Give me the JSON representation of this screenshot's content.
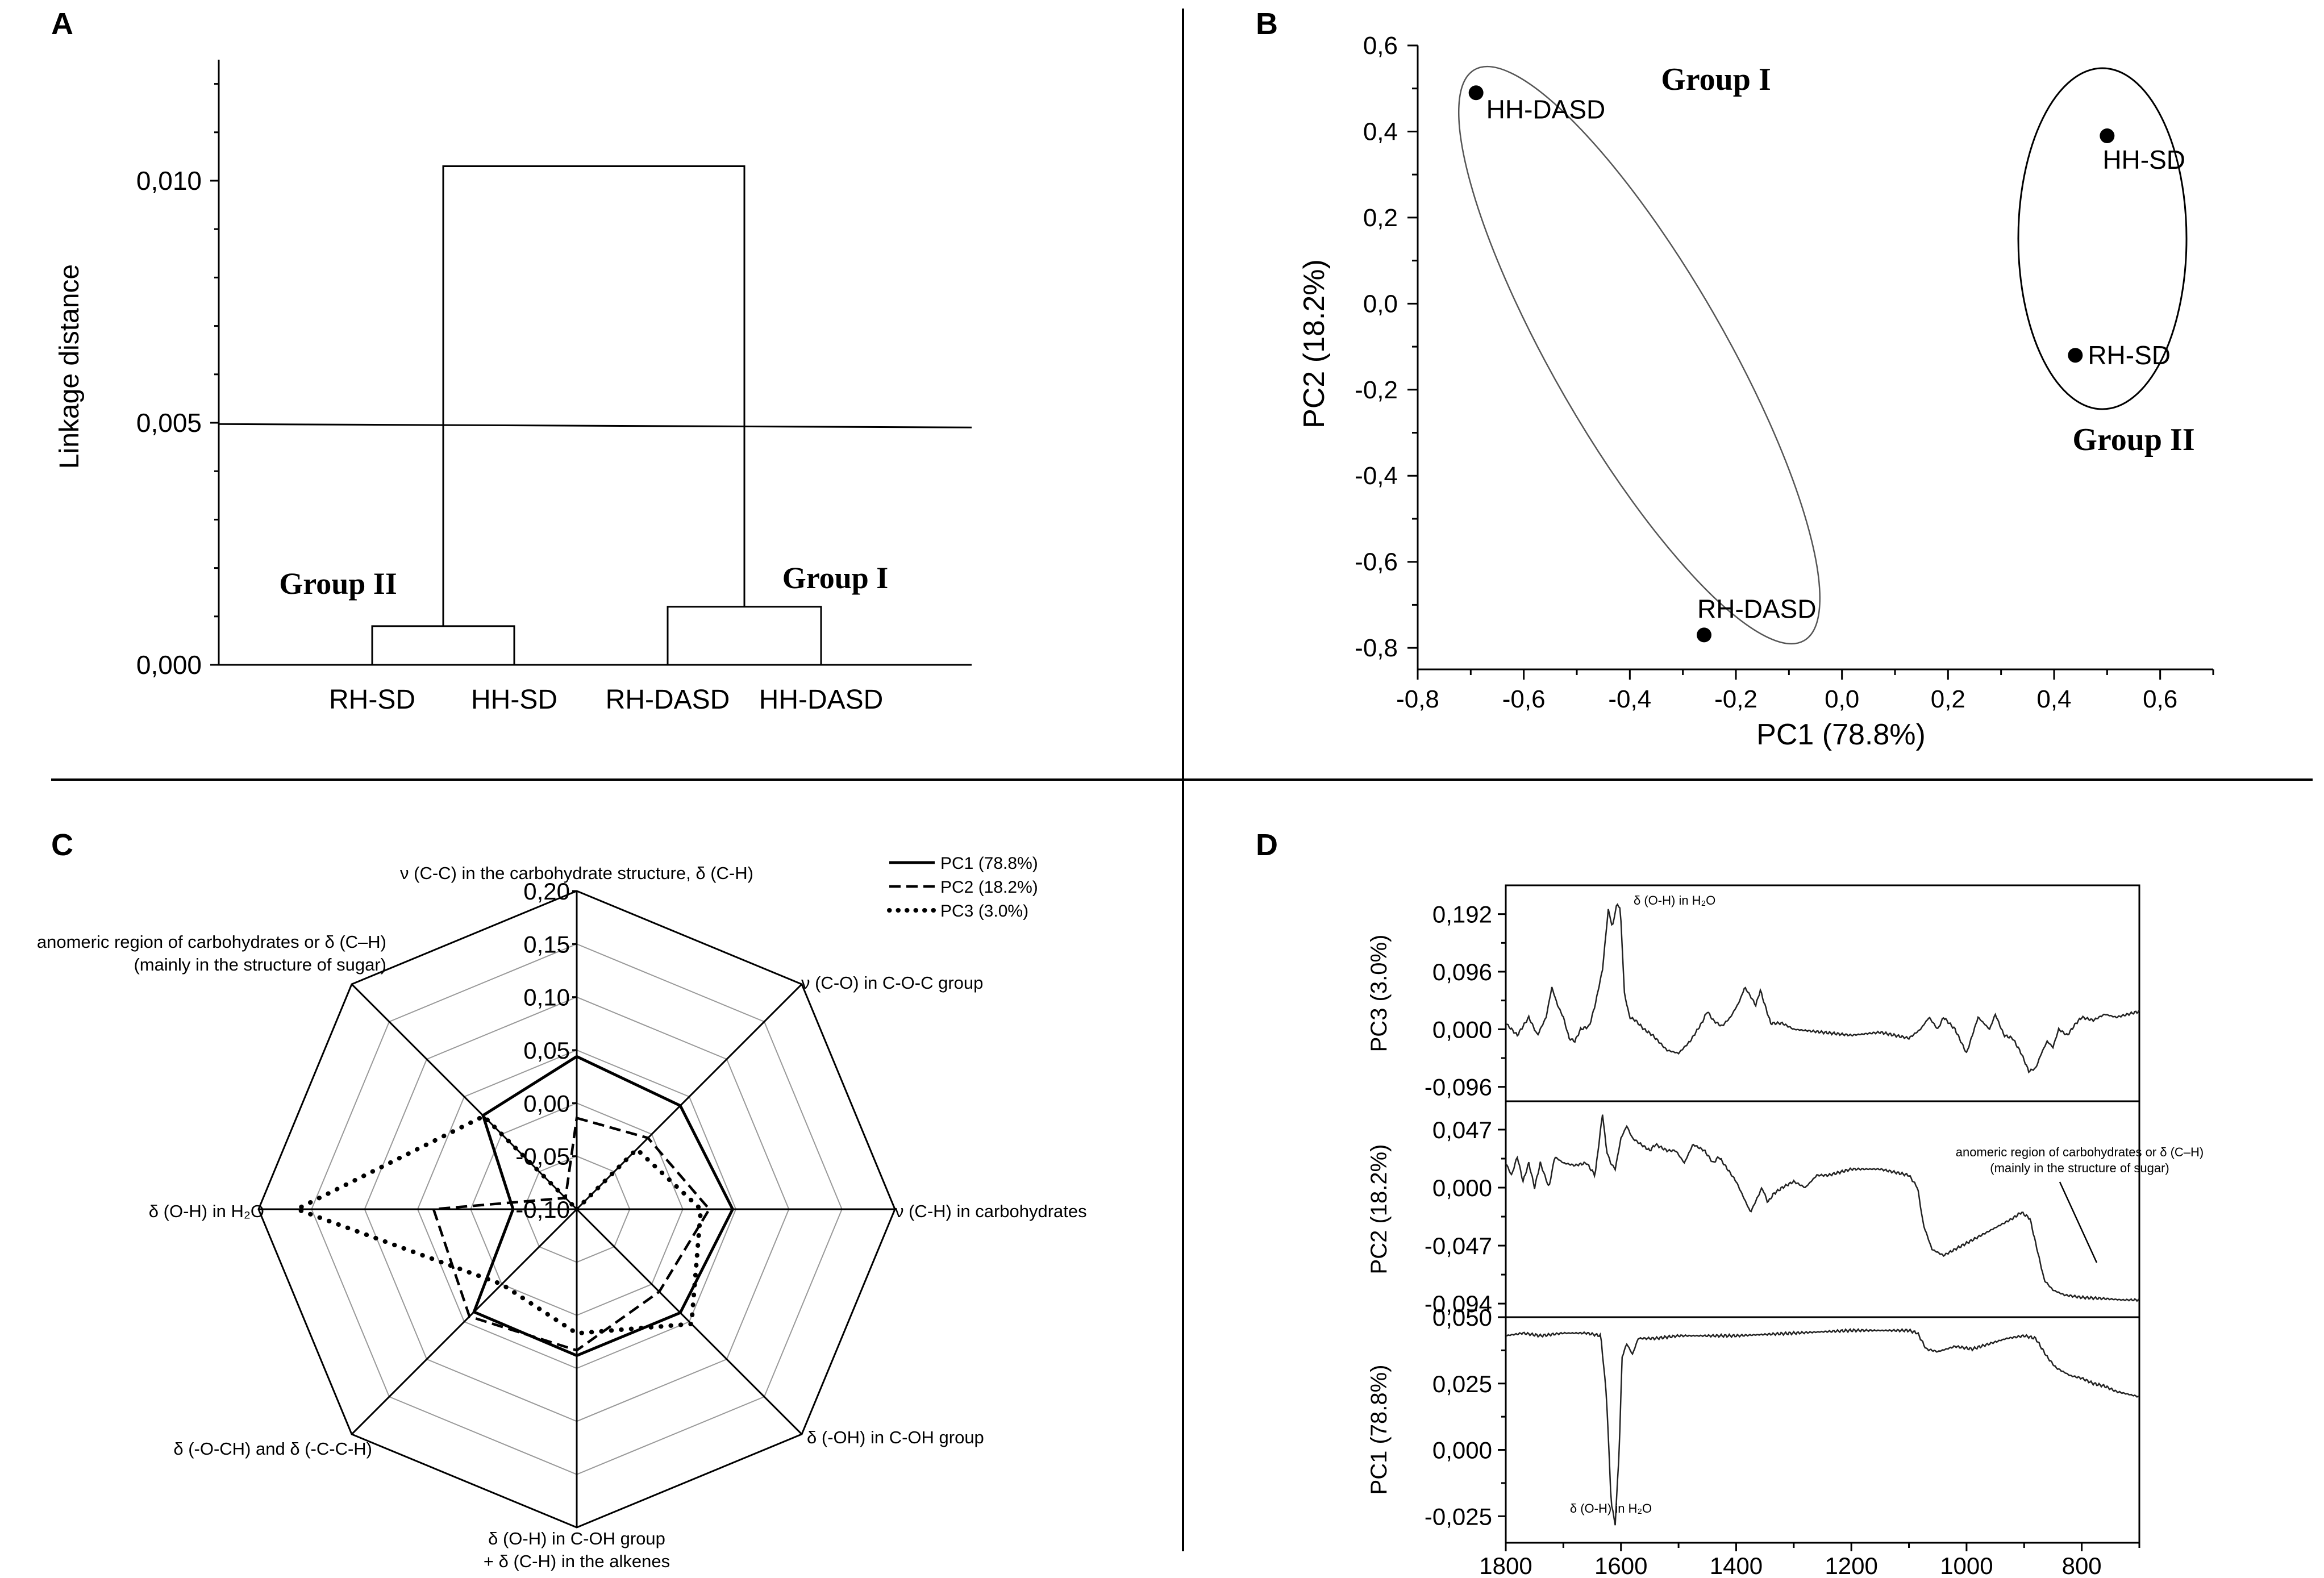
{
  "figure": {
    "panel_labels": [
      "A",
      "B",
      "C",
      "D"
    ]
  },
  "chart_data": [
    {
      "panel": "A",
      "type": "dendrogram",
      "ylabel": "Linkage distance",
      "yticks": [
        "0,000",
        "0,005",
        "0,010"
      ],
      "ylim": [
        0,
        0.0125
      ],
      "leaves": [
        "RH-SD",
        "HH-SD",
        "RH-DASD",
        "HH-DASD"
      ],
      "merges": [
        {
          "left": "RH-SD",
          "right": "HH-SD",
          "height": 0.0008
        },
        {
          "left": "RH-DASD",
          "right": "HH-DASD",
          "height": 0.0012
        },
        {
          "left": "Group II",
          "right": "Group I",
          "height": 0.0103
        }
      ],
      "cut_line": 0.00495,
      "group_labels": [
        "Group II",
        "Group I"
      ]
    },
    {
      "panel": "B",
      "type": "scatter",
      "xlabel": "PC1 (78.8%)",
      "ylabel": "PC2 (18.2%)",
      "xlim": [
        -0.8,
        0.7
      ],
      "ylim": [
        -0.85,
        0.6
      ],
      "xticks": [
        "-0,8",
        "-0,6",
        "-0,4",
        "-0,2",
        "0,0",
        "0,2",
        "0,4",
        "0,6"
      ],
      "yticks": [
        "-0,8",
        "-0,6",
        "-0,4",
        "-0,2",
        "0,0",
        "0,2",
        "0,4",
        "0,6"
      ],
      "points": [
        {
          "label": "HH-DASD",
          "x": -0.69,
          "y": 0.49
        },
        {
          "label": "RH-DASD",
          "x": -0.26,
          "y": -0.77
        },
        {
          "label": "HH-SD",
          "x": 0.5,
          "y": 0.39
        },
        {
          "label": "RH-SD",
          "x": 0.44,
          "y": -0.12
        }
      ],
      "group_labels": [
        "Group I",
        "Group II"
      ]
    },
    {
      "panel": "C",
      "type": "radar",
      "rlim": [
        -0.1,
        0.2
      ],
      "ticks": [
        "-0,10",
        "-0,05",
        "0,00",
        "0,05",
        "0,10",
        "0,15",
        "0,20"
      ],
      "axes": [
        "ν (C-C) in the carbohydrate structure, δ (C-H)",
        "ν (C-O) in C-O-C group",
        "ν (C-H) in carbohydrates",
        "δ (-OH) in C-OH group",
        "δ (O-H) in C-OH group",
        "δ (-O-CH) and δ (-C-C-H)",
        "δ (O-H) in H₂O",
        "anomeric region of carbohydrates or δ (C–H)"
      ],
      "axis_label_extra": {
        "bottom_second_line": "+ δ (C-H) in the alkenes",
        "anomeric_second_line": "(mainly in the structure of sugar)"
      },
      "series": [
        {
          "name": "PC1 (78.8%)",
          "values": [
            0.044,
            0.038,
            0.047,
            0.038,
            0.038,
            0.037,
            -0.04,
            0.025
          ]
        },
        {
          "name": "PC2 (18.2%)",
          "values": [
            -0.014,
            -0.005,
            0.025,
            0.01,
            0.033,
            0.043,
            0.035,
            -0.085
          ]
        },
        {
          "name": "PC3 (3.0%)",
          "values": [
            -0.1,
            -0.02,
            0.017,
            0.053,
            0.017,
            0.0,
            0.164,
            0.024
          ]
        }
      ]
    },
    {
      "panel": "D",
      "type": "line",
      "xlabel": "",
      "xlim": [
        1800,
        700
      ],
      "xticks": [
        "1800",
        "1600",
        "1400",
        "1200",
        "1000",
        "800"
      ],
      "subplots": [
        {
          "name": "PC3 (3.0%)",
          "yticks": [
            "-0,096",
            "0,000",
            "0,096",
            "0,192"
          ],
          "ylim": [
            -0.12,
            0.24
          ],
          "annotation": "δ (O-H) in H₂O",
          "anchors": [
            [
              1800,
              0.01
            ],
            [
              1780,
              -0.01
            ],
            [
              1760,
              0.02
            ],
            [
              1745,
              -0.01
            ],
            [
              1730,
              0.02
            ],
            [
              1720,
              0.07
            ],
            [
              1710,
              0.04
            ],
            [
              1700,
              0.02
            ],
            [
              1690,
              -0.015
            ],
            [
              1680,
              -0.02
            ],
            [
              1670,
              0.0
            ],
            [
              1655,
              0.005
            ],
            [
              1645,
              0.04
            ],
            [
              1632,
              0.1
            ],
            [
              1622,
              0.2
            ],
            [
              1615,
              0.17
            ],
            [
              1607,
              0.21
            ],
            [
              1601,
              0.2
            ],
            [
              1594,
              0.06
            ],
            [
              1585,
              0.02
            ],
            [
              1575,
              0.015
            ],
            [
              1560,
              0.0
            ],
            [
              1545,
              -0.01
            ],
            [
              1520,
              -0.035
            ],
            [
              1500,
              -0.04
            ],
            [
              1480,
              -0.02
            ],
            [
              1460,
              0.01
            ],
            [
              1450,
              0.03
            ],
            [
              1440,
              0.015
            ],
            [
              1425,
              0.005
            ],
            [
              1410,
              0.02
            ],
            [
              1395,
              0.045
            ],
            [
              1385,
              0.07
            ],
            [
              1375,
              0.055
            ],
            [
              1366,
              0.04
            ],
            [
              1358,
              0.065
            ],
            [
              1350,
              0.04
            ],
            [
              1340,
              0.01
            ],
            [
              1320,
              0.01
            ],
            [
              1300,
              0.0
            ],
            [
              1250,
              -0.005
            ],
            [
              1200,
              -0.01
            ],
            [
              1150,
              -0.005
            ],
            [
              1100,
              -0.015
            ],
            [
              1080,
              0.0
            ],
            [
              1065,
              0.02
            ],
            [
              1050,
              0.0
            ],
            [
              1040,
              0.02
            ],
            [
              1020,
              0.0
            ],
            [
              1010,
              -0.02
            ],
            [
              1000,
              -0.04
            ],
            [
              990,
              -0.01
            ],
            [
              980,
              0.02
            ],
            [
              960,
              0.0
            ],
            [
              950,
              0.025
            ],
            [
              935,
              -0.01
            ],
            [
              920,
              -0.015
            ],
            [
              905,
              -0.04
            ],
            [
              892,
              -0.07
            ],
            [
              880,
              -0.065
            ],
            [
              870,
              -0.04
            ],
            [
              860,
              -0.02
            ],
            [
              850,
              -0.03
            ],
            [
              840,
              0.0
            ],
            [
              825,
              -0.01
            ],
            [
              810,
              0.01
            ],
            [
              800,
              0.02
            ],
            [
              780,
              0.015
            ],
            [
              760,
              0.025
            ],
            [
              740,
              0.02
            ],
            [
              720,
              0.025
            ],
            [
              700,
              0.03
            ]
          ]
        },
        {
          "name": "PC2 (18.2%)",
          "yticks": [
            "-0,094",
            "-0,047",
            "0,000",
            "0,047"
          ],
          "ylim": [
            -0.105,
            0.07
          ],
          "annotation": "anomeric region of carbohydrates or δ (C–H)",
          "annotation_line2": "(mainly in the structure of sugar)",
          "anchors": [
            [
              1800,
              0.02
            ],
            [
              1790,
              0.01
            ],
            [
              1780,
              0.025
            ],
            [
              1770,
              0.005
            ],
            [
              1760,
              0.02
            ],
            [
              1750,
              0.0
            ],
            [
              1740,
              0.02
            ],
            [
              1725,
              0.0
            ],
            [
              1715,
              0.025
            ],
            [
              1700,
              0.02
            ],
            [
              1680,
              0.018
            ],
            [
              1660,
              0.02
            ],
            [
              1645,
              0.01
            ],
            [
              1632,
              0.06
            ],
            [
              1625,
              0.03
            ],
            [
              1618,
              0.02
            ],
            [
              1610,
              0.015
            ],
            [
              1600,
              0.04
            ],
            [
              1590,
              0.05
            ],
            [
              1580,
              0.04
            ],
            [
              1565,
              0.035
            ],
            [
              1550,
              0.03
            ],
            [
              1540,
              0.035
            ],
            [
              1520,
              0.03
            ],
            [
              1505,
              0.03
            ],
            [
              1490,
              0.02
            ],
            [
              1475,
              0.035
            ],
            [
              1455,
              0.03
            ],
            [
              1440,
              0.02
            ],
            [
              1430,
              0.025
            ],
            [
              1415,
              0.015
            ],
            [
              1400,
              0.005
            ],
            [
              1385,
              -0.01
            ],
            [
              1375,
              -0.02
            ],
            [
              1365,
              -0.01
            ],
            [
              1355,
              0.0
            ],
            [
              1345,
              -0.012
            ],
            [
              1335,
              -0.005
            ],
            [
              1320,
              0.0
            ],
            [
              1300,
              0.005
            ],
            [
              1280,
              0.0
            ],
            [
              1260,
              0.01
            ],
            [
              1240,
              0.01
            ],
            [
              1200,
              0.015
            ],
            [
              1150,
              0.015
            ],
            [
              1100,
              0.01
            ],
            [
              1085,
              0.0
            ],
            [
              1075,
              -0.03
            ],
            [
              1060,
              -0.05
            ],
            [
              1040,
              -0.055
            ],
            [
              1020,
              -0.05
            ],
            [
              1000,
              -0.045
            ],
            [
              980,
              -0.04
            ],
            [
              960,
              -0.035
            ],
            [
              940,
              -0.03
            ],
            [
              920,
              -0.025
            ],
            [
              905,
              -0.02
            ],
            [
              890,
              -0.025
            ],
            [
              880,
              -0.045
            ],
            [
              865,
              -0.075
            ],
            [
              850,
              -0.083
            ],
            [
              830,
              -0.087
            ],
            [
              800,
              -0.089
            ],
            [
              760,
              -0.09
            ],
            [
              730,
              -0.091
            ],
            [
              700,
              -0.091
            ]
          ]
        },
        {
          "name": "PC1 (78.8%)",
          "yticks": [
            "-0,025",
            "0,000",
            "0,025",
            "0,050"
          ],
          "ylim": [
            -0.035,
            0.05
          ],
          "annotation": "δ (O-H) in H₂O",
          "anchors": [
            [
              1800,
              0.043
            ],
            [
              1770,
              0.044
            ],
            [
              1740,
              0.043
            ],
            [
              1700,
              0.044
            ],
            [
              1660,
              0.044
            ],
            [
              1635,
              0.043
            ],
            [
              1625,
              0.02
            ],
            [
              1617,
              -0.02
            ],
            [
              1610,
              -0.028
            ],
            [
              1603,
              0.0
            ],
            [
              1598,
              0.035
            ],
            [
              1590,
              0.04
            ],
            [
              1580,
              0.036
            ],
            [
              1570,
              0.042
            ],
            [
              1540,
              0.042
            ],
            [
              1500,
              0.043
            ],
            [
              1400,
              0.043
            ],
            [
              1300,
              0.044
            ],
            [
              1200,
              0.045
            ],
            [
              1100,
              0.045
            ],
            [
              1085,
              0.044
            ],
            [
              1070,
              0.038
            ],
            [
              1050,
              0.037
            ],
            [
              1020,
              0.039
            ],
            [
              990,
              0.038
            ],
            [
              960,
              0.04
            ],
            [
              930,
              0.042
            ],
            [
              900,
              0.043
            ],
            [
              880,
              0.042
            ],
            [
              860,
              0.035
            ],
            [
              845,
              0.031
            ],
            [
              820,
              0.028
            ],
            [
              800,
              0.027
            ],
            [
              780,
              0.025
            ],
            [
              760,
              0.024
            ],
            [
              740,
              0.022
            ],
            [
              720,
              0.021
            ],
            [
              700,
              0.02
            ]
          ]
        }
      ]
    }
  ]
}
